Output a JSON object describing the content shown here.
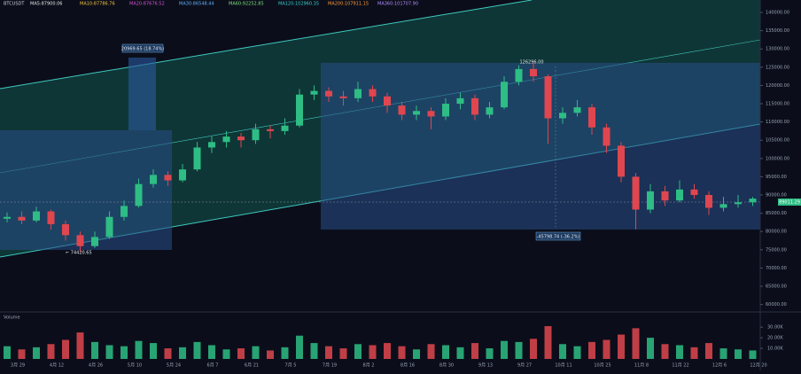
{
  "chart_data": {
    "type": "candlestick",
    "title": "BTCUSDT",
    "indicators": [
      "MA5:87900.06",
      "MA10:87786.76",
      "MA20:87676.52",
      "MA30:86548.44",
      "MA60:92252.85",
      "MA120:102960.35",
      "MA200:107911.15",
      "MA360:101707.90"
    ],
    "volume_title": "Volume",
    "up_color": "#2ebd85",
    "down_color": "#e0464f",
    "ylim": [
      58450,
      143400
    ],
    "yticks": [
      {
        "value": 60000,
        "label": "60000.00"
      },
      {
        "value": 65000,
        "label": "65000.00"
      },
      {
        "value": 70000,
        "label": "70000.00"
      },
      {
        "value": 75000,
        "label": "75000.00"
      },
      {
        "value": 80000,
        "label": "80000.00"
      },
      {
        "value": 85000,
        "label": "85000.00"
      },
      {
        "value": 90000,
        "label": "90000.00"
      },
      {
        "value": 95000,
        "label": "95000.00"
      },
      {
        "value": 100000,
        "label": "100000.00"
      },
      {
        "value": 105000,
        "label": "105000.00"
      },
      {
        "value": 110000,
        "label": "110000.00"
      },
      {
        "value": 115000,
        "label": "115000.00"
      },
      {
        "value": 120000,
        "label": "120000.00"
      },
      {
        "value": 125000,
        "label": "125000.00"
      },
      {
        "value": 130000,
        "label": "130000.00"
      },
      {
        "value": 135000,
        "label": "135000.00"
      },
      {
        "value": 140000,
        "label": "140000.00"
      }
    ],
    "vlim": [
      0,
      36000
    ],
    "vticks": [
      {
        "value": 10000,
        "label": "10.00K"
      },
      {
        "value": 20000,
        "label": "20.00K"
      },
      {
        "value": 30000,
        "label": "30.00K"
      }
    ],
    "x_labels": [
      "3月 29",
      "4月 12",
      "4月 26",
      "5月 10",
      "5月 24",
      "6月 7",
      "6月 21",
      "7月 5",
      "7月 19",
      "8月 2",
      "8月 16",
      "8月 30",
      "9月 13",
      "9月 27",
      "10月 11",
      "10月 25",
      "11月 8",
      "11月 22",
      "12月 6",
      "12月 20"
    ],
    "candles": [
      [
        83500,
        85200,
        82500,
        84000
      ],
      [
        84000,
        85500,
        82000,
        83000
      ],
      [
        83000,
        86800,
        82500,
        85500
      ],
      [
        85500,
        86000,
        80500,
        82000
      ],
      [
        82000,
        83000,
        77500,
        79000
      ],
      [
        79000,
        80000,
        74420,
        76000
      ],
      [
        76000,
        80000,
        75500,
        78500
      ],
      [
        78500,
        85500,
        78000,
        84000
      ],
      [
        84000,
        88500,
        83000,
        87000
      ],
      [
        87000,
        94500,
        86500,
        93000
      ],
      [
        93000,
        97000,
        92000,
        95500
      ],
      [
        95500,
        96500,
        92500,
        94000
      ],
      [
        94000,
        98500,
        93500,
        97000
      ],
      [
        97000,
        104500,
        96500,
        103000
      ],
      [
        103000,
        106000,
        101500,
        104500
      ],
      [
        104500,
        107500,
        103000,
        106000
      ],
      [
        106000,
        107000,
        103000,
        105000
      ],
      [
        105000,
        109500,
        104000,
        108000
      ],
      [
        108000,
        109000,
        105500,
        107500
      ],
      [
        107500,
        111000,
        106500,
        109000
      ],
      [
        109000,
        119000,
        108500,
        117500
      ],
      [
        117500,
        120000,
        116000,
        118500
      ],
      [
        118500,
        119500,
        115500,
        117000
      ],
      [
        117000,
        118500,
        114500,
        116500
      ],
      [
        116500,
        121000,
        115500,
        119000
      ],
      [
        119000,
        120000,
        115500,
        117000
      ],
      [
        117000,
        118000,
        112500,
        114500
      ],
      [
        114500,
        115500,
        110500,
        112000
      ],
      [
        112000,
        114500,
        110500,
        113000
      ],
      [
        113000,
        114000,
        108000,
        111500
      ],
      [
        111500,
        116500,
        110500,
        115000
      ],
      [
        115000,
        118000,
        113500,
        116500
      ],
      [
        116500,
        117500,
        110500,
        112000
      ],
      [
        112000,
        115500,
        111000,
        114000
      ],
      [
        114000,
        122500,
        113500,
        121000
      ],
      [
        121000,
        125500,
        120000,
        124500
      ],
      [
        124500,
        126296,
        121000,
        122500
      ],
      [
        122500,
        123000,
        104000,
        111000
      ],
      [
        111000,
        114000,
        109500,
        112500
      ],
      [
        112500,
        116000,
        111500,
        114000
      ],
      [
        114000,
        115000,
        106500,
        108500
      ],
      [
        108500,
        109500,
        101500,
        103500
      ],
      [
        103500,
        104500,
        93500,
        95000
      ],
      [
        95000,
        96000,
        80600,
        86000
      ],
      [
        86000,
        93000,
        85000,
        91000
      ],
      [
        91000,
        92500,
        87000,
        88500
      ],
      [
        88500,
        94000,
        88000,
        91500
      ],
      [
        91500,
        93000,
        89000,
        90000
      ],
      [
        90000,
        91000,
        84500,
        86500
      ],
      [
        86500,
        89500,
        85500,
        87500
      ],
      [
        87500,
        90000,
        86500,
        88000
      ],
      [
        88000,
        89500,
        87000,
        89011
      ]
    ],
    "volumes": [
      12000,
      9000,
      11000,
      14000,
      18000,
      25000,
      16000,
      13000,
      12000,
      17000,
      15000,
      10000,
      11000,
      16000,
      13000,
      9000,
      10000,
      12000,
      8000,
      11000,
      22000,
      15000,
      12000,
      10000,
      14000,
      13000,
      15000,
      12000,
      9000,
      14000,
      13000,
      11000,
      15000,
      10000,
      17000,
      16000,
      19000,
      31000,
      14000,
      12000,
      16000,
      18000,
      23000,
      29000,
      20000,
      14000,
      13000,
      11000,
      15000,
      10000,
      9000,
      8000
    ],
    "annotations": {
      "range": "20969.65 (18.74%)",
      "low": "← 74420.65",
      "high": "126296.00",
      "drop": "-45798.74 (-36.2%)",
      "last": "89011.29"
    }
  }
}
